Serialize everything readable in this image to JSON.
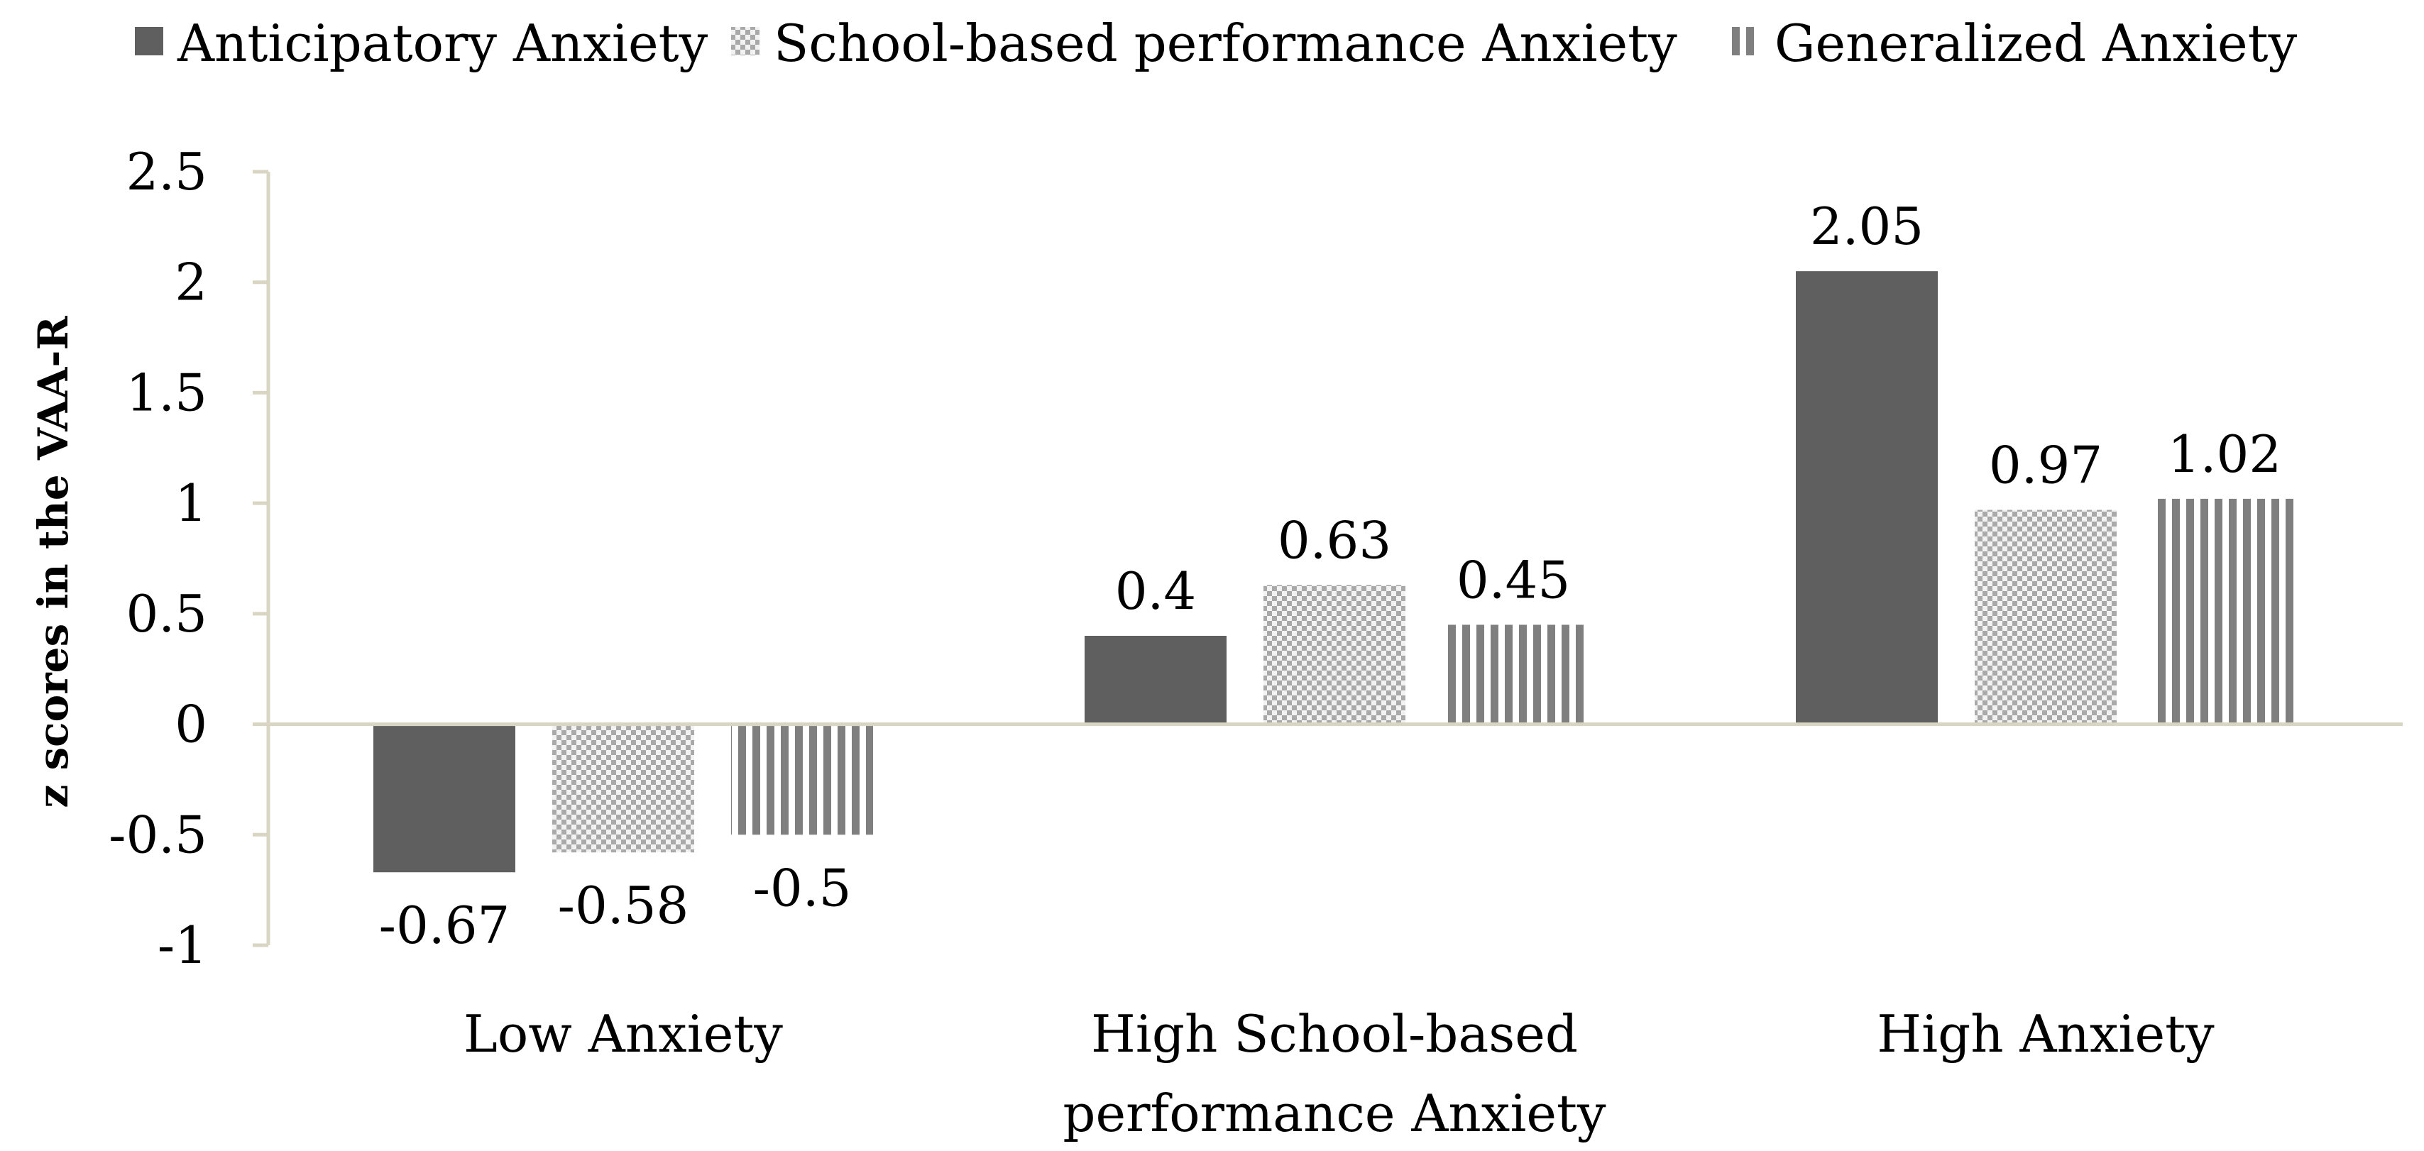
{
  "chart_data": {
    "type": "bar",
    "title": "",
    "xlabel": "",
    "ylabel": "z scores in the VAA-R",
    "ylim": [
      -1,
      2.5
    ],
    "yticks": [
      2.5,
      2,
      1.5,
      1,
      0.5,
      0,
      -0.5,
      -1
    ],
    "ytick_labels": [
      "2.5",
      "2",
      "1.5",
      "1",
      "0.5",
      "0",
      "-0.5",
      "-1"
    ],
    "grid": false,
    "legend_position": "top",
    "categories": [
      [
        "Low Anxiety"
      ],
      [
        "High School-based",
        "performance Anxiety"
      ],
      [
        "High Anxiety"
      ]
    ],
    "series": [
      {
        "name": "Anticipatory Anxiety",
        "values": [
          -0.67,
          0.4,
          2.05
        ],
        "labels": [
          "-0.67",
          "0.4",
          "2.05"
        ],
        "pattern": "solid",
        "color": "#5f5f5f"
      },
      {
        "name": "School-based performance Anxiety",
        "values": [
          -0.58,
          0.63,
          0.97
        ],
        "labels": [
          "-0.58",
          "0.63",
          "0.97"
        ],
        "pattern": "checker",
        "color": "#c8c8c8"
      },
      {
        "name": "Generalized Anxiety",
        "values": [
          -0.5,
          0.45,
          1.02
        ],
        "labels": [
          "-0.5",
          "0.45",
          "1.02"
        ],
        "pattern": "vertical-stripes",
        "color": "#7f7f7f"
      }
    ],
    "axis_color": "#d9d5c3"
  }
}
